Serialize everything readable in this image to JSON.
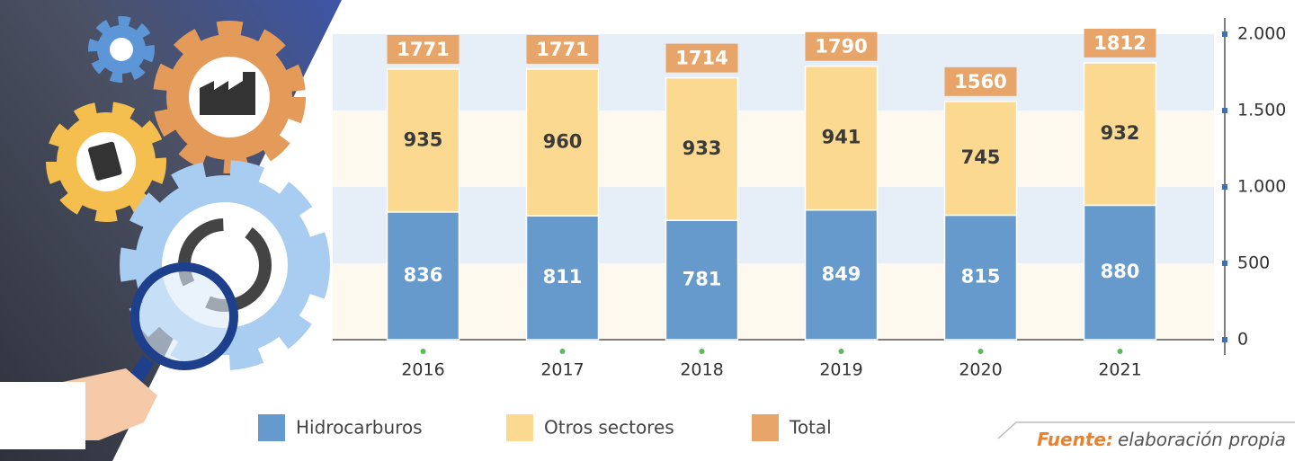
{
  "chart_data": {
    "type": "bar",
    "stacked": true,
    "categories": [
      "2016",
      "2017",
      "2018",
      "2019",
      "2020",
      "2021"
    ],
    "series": [
      {
        "name": "Hidrocarburos",
        "color": "#6699cc",
        "label_color": "#ffffff",
        "values": [
          836,
          811,
          781,
          849,
          815,
          880
        ]
      },
      {
        "name": "Otros sectores",
        "color": "#fcd990",
        "label_color": "#3a3a3a",
        "values": [
          935,
          960,
          933,
          941,
          745,
          932
        ]
      }
    ],
    "totals": {
      "name": "Total",
      "color": "#e8a56a",
      "values": [
        1771,
        1771,
        1714,
        1790,
        1560,
        1812
      ]
    },
    "ylim": [
      0,
      2000
    ],
    "yticks": [
      0,
      500,
      {
        "value": 1000,
        "label": "1.000"
      },
      {
        "value": 1500,
        "label": "1.500"
      },
      {
        "value": 2000,
        "label": "2.000"
      }
    ],
    "grid": true,
    "band_colors": [
      "#fdf9ef",
      "#e6eef7"
    ]
  },
  "source": {
    "label": "Fuente:",
    "text": "elaboración propia"
  }
}
